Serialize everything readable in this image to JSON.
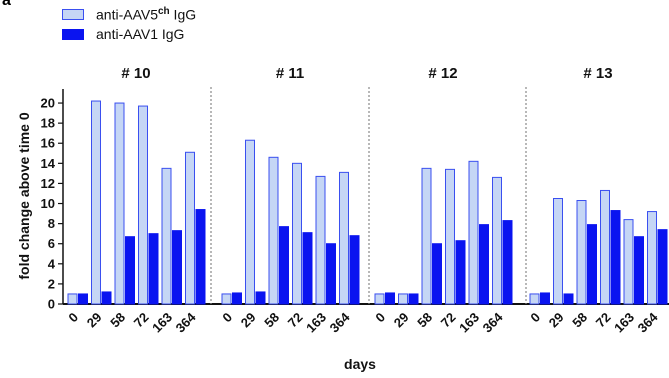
{
  "corner_letter": "a",
  "colors": {
    "aav5": "#c5d6f5",
    "aav5_border": "#3a4ff0",
    "aav1": "#0a14f0",
    "divider": "#888888"
  },
  "legend": {
    "aav5_prefix": "anti-AAV5",
    "aav5_sup": "ch",
    "aav5_suffix": " IgG",
    "aav1": "anti-AAV1 IgG"
  },
  "chart_data": {
    "type": "bar",
    "ylabel": "fold change above time 0",
    "xlabel": "days",
    "ylim": [
      0,
      21
    ],
    "yticks": [
      0,
      2,
      4,
      6,
      8,
      10,
      12,
      14,
      16,
      18,
      20
    ],
    "categories": [
      "0",
      "29",
      "58",
      "72",
      "163",
      "364"
    ],
    "panels": [
      {
        "title": "# 10",
        "series": [
          {
            "name": "anti-AAV5ch IgG",
            "values": [
              1.0,
              20.2,
              20.0,
              19.7,
              13.5,
              15.1
            ]
          },
          {
            "name": "anti-AAV1 IgG",
            "values": [
              1.0,
              1.2,
              6.7,
              7.0,
              7.3,
              9.4
            ]
          }
        ]
      },
      {
        "title": "# 11",
        "series": [
          {
            "name": "anti-AAV5ch IgG",
            "values": [
              1.0,
              16.3,
              14.6,
              14.0,
              12.7,
              13.1
            ]
          },
          {
            "name": "anti-AAV1 IgG",
            "values": [
              1.1,
              1.2,
              7.7,
              7.1,
              6.0,
              6.8
            ]
          }
        ]
      },
      {
        "title": "# 12",
        "series": [
          {
            "name": "anti-AAV5ch IgG",
            "values": [
              1.0,
              1.0,
              13.5,
              13.4,
              14.2,
              12.6
            ]
          },
          {
            "name": "anti-AAV1 IgG",
            "values": [
              1.1,
              1.0,
              6.0,
              6.3,
              7.9,
              8.3
            ]
          }
        ]
      },
      {
        "title": "# 13",
        "series": [
          {
            "name": "anti-AAV5ch IgG",
            "values": [
              1.0,
              10.5,
              10.3,
              11.3,
              8.4,
              9.2
            ]
          },
          {
            "name": "anti-AAV1 IgG",
            "values": [
              1.1,
              1.0,
              7.9,
              9.3,
              6.7,
              7.4
            ]
          }
        ]
      }
    ]
  }
}
